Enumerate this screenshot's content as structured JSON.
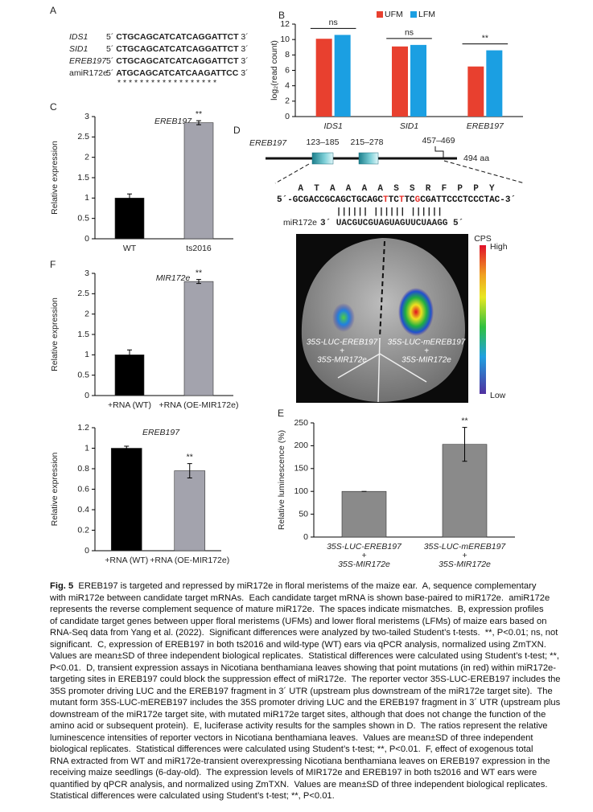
{
  "panel_labels": [
    "A",
    "B",
    "C",
    "D",
    "E",
    "F"
  ],
  "panel_a": {
    "five_prime": "5´",
    "three_prime": "3´",
    "rows": [
      {
        "name": "IDS1",
        "sequence": "CTGCAGCATCATCAGGATTCT"
      },
      {
        "name": "SID1",
        "sequence": "CTGCAGCATCATCAGGATTCT"
      },
      {
        "name": "EREB197",
        "sequence": "CTGCAGCATCATCAGGATTCT"
      },
      {
        "name": "amiR172e",
        "sequence": "ATGCAGCATCATCAAGATTCC"
      }
    ],
    "mismatches": "* * * * * * * * * * * * *     * * * * *"
  },
  "panel_d": {
    "gene": "EREB197",
    "domains": [
      "123–185",
      "215–278"
    ],
    "site": "457–469",
    "length": "494 aa",
    "amino_acids": [
      "A",
      "T",
      "A",
      "A",
      "A",
      "A",
      "S",
      "S",
      "R",
      "F",
      "P",
      "P",
      "Y"
    ],
    "target_sequence": [
      {
        "text": "5´-GCGACCGCAGCTGCAGC"
      },
      {
        "text": "T",
        "color": "#e8302a"
      },
      {
        "text": "TC"
      },
      {
        "text": "T",
        "color": "#e8302a"
      },
      {
        "text": "TC"
      },
      {
        "text": "G",
        "color": "#e8302a"
      },
      {
        "text": "CGATTCCCTCCCTAC-3´"
      }
    ],
    "pairing": "|||||| ||||||  ||||||",
    "mirna_name": "miR172e",
    "mirna_sequence": "3´ UACGUCGUAGUAGUUCUAAGG 5´",
    "image_labels": {
      "left": [
        "35S-LUC-EREB197",
        "+",
        "35S-MIR172e"
      ],
      "right": [
        "35S-LUC-mEREB197",
        "+",
        "35S-MIR172e"
      ]
    },
    "scale": {
      "title": "CPS",
      "high": "High",
      "low": "Low"
    }
  },
  "chart_data": [
    {
      "type": "bar",
      "y_label": "log₂(read count)",
      "categories": [
        "IDS1",
        "SID1",
        "EREB197"
      ],
      "category_font_style": "italic",
      "series": [
        {
          "name": "UFM",
          "color": "#e8402f",
          "values": [
            10.1,
            9.1,
            6.5
          ]
        },
        {
          "name": "LFM",
          "color": "#1b9fe2",
          "values": [
            10.6,
            9.3,
            8.6
          ]
        }
      ],
      "ylim": [
        0,
        12
      ],
      "yticks": [
        0,
        2,
        4,
        6,
        8,
        10,
        12
      ],
      "legend": "top",
      "bracket": true,
      "annotations": [
        {
          "index": 0,
          "text": "ns"
        },
        {
          "index": 1,
          "text": "ns"
        },
        {
          "index": 2,
          "text": "**"
        }
      ]
    },
    {
      "type": "bar",
      "title": "EREB197",
      "y_label": "Relative expression",
      "categories": [
        "WT",
        "ts2016"
      ],
      "values": [
        1,
        2.85
      ],
      "errors": [
        0.1,
        0.05
      ],
      "colors": [
        "#000000",
        "#a3a3ad"
      ],
      "ylim": [
        0,
        3
      ],
      "yticks": [
        0,
        0.5,
        1,
        1.5,
        2,
        2.5,
        3
      ],
      "annotations": [
        {
          "index": 1,
          "text": "**"
        }
      ]
    },
    {
      "type": "bar",
      "title": "MIR172e",
      "y_label": "Relative expression",
      "categories": [
        "+RNA (WT)",
        "+RNA (OE-MIR172e)"
      ],
      "values": [
        1,
        2.8
      ],
      "errors": [
        0.12,
        0.05
      ],
      "colors": [
        "#000000",
        "#a3a3ad"
      ],
      "ylim": [
        0,
        3
      ],
      "yticks": [
        0,
        0.5,
        1,
        1.5,
        2,
        2.5,
        3
      ],
      "annotations": [
        {
          "index": 1,
          "text": "**"
        }
      ]
    },
    {
      "type": "bar",
      "title": "EREB197",
      "y_label": "Relative expression",
      "categories": [
        "+RNA (WT)",
        "+RNA (OE-MIR172e)"
      ],
      "values": [
        1,
        0.78
      ],
      "errors": [
        0.02,
        0.07
      ],
      "colors": [
        "#000000",
        "#a3a3ad"
      ],
      "ylim": [
        0,
        1.2
      ],
      "yticks": [
        0,
        0.2,
        0.4,
        0.6,
        0.8,
        1,
        1.2
      ],
      "annotations": [
        {
          "index": 1,
          "text": "**"
        }
      ]
    },
    {
      "type": "bar",
      "y_label": "Relative luminescence (%)",
      "category_font_style": "italic",
      "categories": [
        [
          "35S-LUC-EREB197",
          "+",
          "35S-MIR172e"
        ],
        [
          "35S-LUC-mEREB197",
          "+",
          "35S-MIR172e"
        ]
      ],
      "values": [
        100,
        203
      ],
      "errors": [
        0,
        37
      ],
      "colors": [
        "#8a8a8a",
        "#8a8a8a"
      ],
      "ylim": [
        0,
        250
      ],
      "yticks": [
        0,
        50,
        100,
        150,
        200,
        250
      ],
      "annotations": [
        {
          "index": 1,
          "text": "**"
        }
      ]
    }
  ],
  "caption": {
    "label": "Fig. 5",
    "lines": [
      "  EREB197 is targeted and repressed by miR172e in floral meristems of the maize ear.  A, sequence complementary",
      "with miR172e between candidate target mRNAs.  Each candidate target mRNA is shown base-paired to miR172e.  amiR172e",
      "represents the reverse complement sequence of mature miR172e.  The spaces indicate mismatches.  B, expression profiles",
      "of candidate target genes between upper floral meristems (UFMs) and lower floral meristems (LFMs) of maize ears based on",
      "RNA-Seq data from Yang et al. (2022).  Significant differences were analyzed by two-tailed Student’s t-tests.  **, P<0.01; ns, not",
      "significant.  C, expression of EREB197 in both ts2016 and wild-type (WT) ears via qPCR analysis, normalized using ZmTXN.",
      "Values are mean±SD of three independent biological replicates.  Statistical differences were calculated using Student’s t-test; **,",
      "P<0.01.  D, transient expression assays in Nicotiana benthamiana leaves showing that point mutations (in red) within miR172e-",
      "targeting sites in EREB197 could block the suppression effect of miR172e.  The reporter vector 35S-LUC-EREB197 includes the",
      "35S promoter driving LUC and the EREB197 fragment in 3´ UTR (upstream plus downstream of the miR172e target site).  The",
      "mutant form 35S-LUC-mEREB197 includes the 35S promoter driving LUC and the EREB197 fragment in 3´ UTR (upstream plus",
      "downstream of the miR172e target site, with mutated miR172e target sites, although that does not change the function of the",
      "amino acid or subsequent protein).  E, luciferase activity results for the samples shown in D.  The ratios represent the relative",
      "luminescence intensities of reporter vectors in Nicotiana benthamiana leaves.  Values are mean±SD of three independent",
      "biological replicates.  Statistical differences were calculated using Student’s t-test; **, P<0.01.  F, effect of exogenous total",
      "RNA extracted from WT and miR172e-transient overexpressing Nicotiana benthamiana leaves on EREB197 expression in the",
      "receiving maize seedlings (6-day-old).  The expression levels of MIR172e and EREB197 in both ts2016 and WT ears were",
      "quantified by qPCR analysis, and normalized using ZmTXN.  Values are mean±SD of three independent biological replicates.",
      "Statistical differences were calculated using Student’s t-test; **, P<0.01."
    ]
  }
}
